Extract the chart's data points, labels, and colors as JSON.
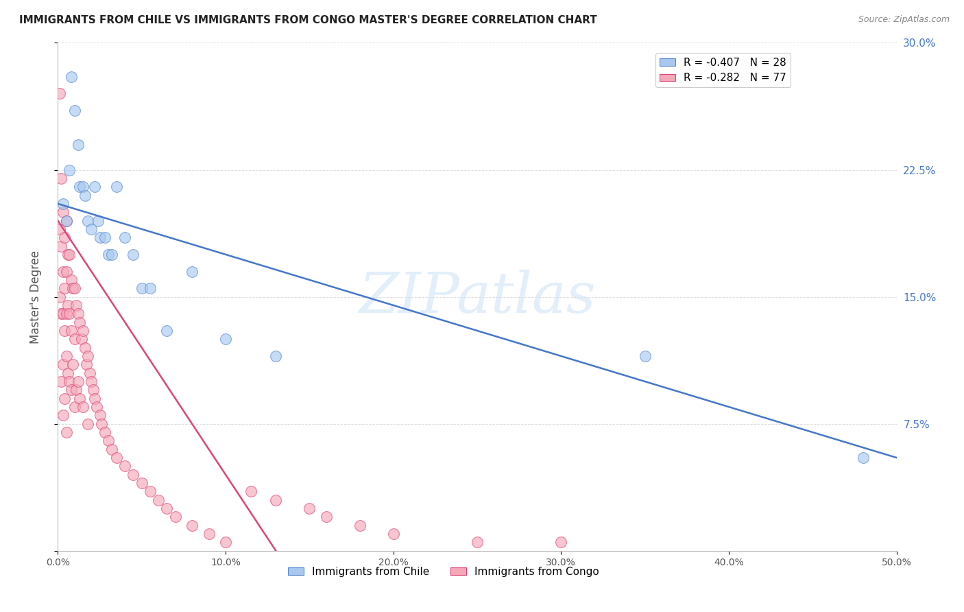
{
  "title": "IMMIGRANTS FROM CHILE VS IMMIGRANTS FROM CONGO MASTER'S DEGREE CORRELATION CHART",
  "source": "Source: ZipAtlas.com",
  "ylabel": "Master's Degree",
  "xlim": [
    0.0,
    0.5
  ],
  "ylim": [
    0.0,
    0.3
  ],
  "grid_color": "#dddddd",
  "background_color": "#ffffff",
  "watermark_text": "ZIPatlas",
  "legend_R_chile": "-0.407",
  "legend_N_chile": "28",
  "legend_R_congo": "-0.282",
  "legend_N_congo": "77",
  "chile_color": "#a8c8f0",
  "congo_color": "#f4a8b8",
  "chile_edge_color": "#5588cc",
  "congo_edge_color": "#dd4477",
  "chile_line_color": "#4477cc",
  "congo_line_color": "#dd4477",
  "chile_points_x": [
    0.003,
    0.005,
    0.007,
    0.008,
    0.01,
    0.012,
    0.013,
    0.015,
    0.016,
    0.018,
    0.02,
    0.022,
    0.024,
    0.025,
    0.028,
    0.03,
    0.032,
    0.035,
    0.04,
    0.045,
    0.05,
    0.055,
    0.065,
    0.08,
    0.1,
    0.13,
    0.35,
    0.48
  ],
  "chile_points_y": [
    0.205,
    0.195,
    0.225,
    0.28,
    0.26,
    0.24,
    0.215,
    0.215,
    0.21,
    0.195,
    0.19,
    0.215,
    0.195,
    0.185,
    0.185,
    0.175,
    0.175,
    0.215,
    0.185,
    0.175,
    0.155,
    0.155,
    0.13,
    0.165,
    0.125,
    0.115,
    0.115,
    0.055
  ],
  "congo_points_x": [
    0.001,
    0.001,
    0.001,
    0.002,
    0.002,
    0.002,
    0.002,
    0.003,
    0.003,
    0.003,
    0.003,
    0.003,
    0.004,
    0.004,
    0.004,
    0.004,
    0.005,
    0.005,
    0.005,
    0.005,
    0.005,
    0.006,
    0.006,
    0.006,
    0.007,
    0.007,
    0.007,
    0.008,
    0.008,
    0.008,
    0.009,
    0.009,
    0.01,
    0.01,
    0.01,
    0.011,
    0.011,
    0.012,
    0.012,
    0.013,
    0.013,
    0.014,
    0.015,
    0.015,
    0.016,
    0.017,
    0.018,
    0.018,
    0.019,
    0.02,
    0.021,
    0.022,
    0.023,
    0.025,
    0.026,
    0.028,
    0.03,
    0.032,
    0.035,
    0.04,
    0.045,
    0.05,
    0.055,
    0.06,
    0.065,
    0.07,
    0.08,
    0.09,
    0.1,
    0.115,
    0.13,
    0.15,
    0.16,
    0.18,
    0.2,
    0.25,
    0.3
  ],
  "congo_points_y": [
    0.27,
    0.19,
    0.15,
    0.22,
    0.18,
    0.14,
    0.1,
    0.2,
    0.165,
    0.14,
    0.11,
    0.08,
    0.185,
    0.155,
    0.13,
    0.09,
    0.195,
    0.165,
    0.14,
    0.115,
    0.07,
    0.175,
    0.145,
    0.105,
    0.175,
    0.14,
    0.1,
    0.16,
    0.13,
    0.095,
    0.155,
    0.11,
    0.155,
    0.125,
    0.085,
    0.145,
    0.095,
    0.14,
    0.1,
    0.135,
    0.09,
    0.125,
    0.13,
    0.085,
    0.12,
    0.11,
    0.115,
    0.075,
    0.105,
    0.1,
    0.095,
    0.09,
    0.085,
    0.08,
    0.075,
    0.07,
    0.065,
    0.06,
    0.055,
    0.05,
    0.045,
    0.04,
    0.035,
    0.03,
    0.025,
    0.02,
    0.015,
    0.01,
    0.005,
    0.035,
    0.03,
    0.025,
    0.02,
    0.015,
    0.01,
    0.005,
    0.005
  ],
  "chile_line_x0": 0.0,
  "chile_line_y0": 0.205,
  "chile_line_x1": 0.5,
  "chile_line_y1": 0.055,
  "congo_line_x0": 0.0,
  "congo_line_y0": 0.195,
  "congo_line_x1": 0.13,
  "congo_line_y1": 0.0
}
